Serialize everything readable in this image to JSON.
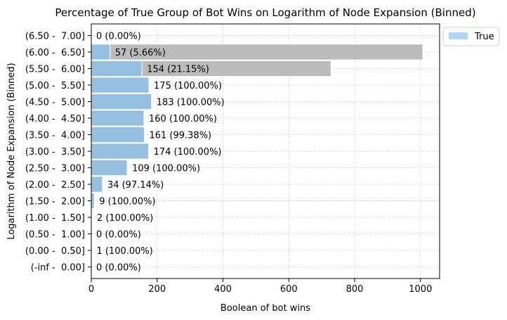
{
  "chart_data": {
    "type": "bar",
    "orientation": "horizontal",
    "title": "Percentage of True Group of Bot Wins on Logarithm of Node Expansion (Binned)",
    "xlabel": "Boolean of bot wins",
    "ylabel": "Logarithm of Node Expansion (Binned)",
    "xlim": [
      0,
      1058
    ],
    "xticks": [
      0,
      200,
      400,
      600,
      800,
      1000
    ],
    "grid": true,
    "legend_position": "top-right",
    "categories": [
      "(-inf -  0.00]",
      "(0.00 -  0.50]",
      "(0.50 -  1.00]",
      "(1.00 -  1.50]",
      "(1.50 -  2.00]",
      "(2.00 -  2.50]",
      "(2.50 -  3.00]",
      "(3.00 -  3.50]",
      "(3.50 -  4.00]",
      "(4.00 -  4.50]",
      "(4.50 -  5.00]",
      "(5.00 -  5.50]",
      "(5.50 -  6.00]",
      "(6.00 -  6.50]",
      "(6.50 -  7.00]"
    ],
    "series": [
      {
        "name": "True",
        "color": "#aed8f5",
        "values": [
          0,
          1,
          0,
          2,
          9,
          34,
          109,
          174,
          161,
          160,
          183,
          175,
          154,
          57,
          0
        ]
      },
      {
        "color": "#bbbbbb",
        "values": [
          0,
          1,
          0,
          2,
          9,
          35,
          109,
          174,
          162,
          160,
          183,
          175,
          728,
          1007,
          0
        ]
      }
    ],
    "bar_labels": [
      "0 (0.00%)",
      "1 (100.00%)",
      "0 (0.00%)",
      "2 (100.00%)",
      "9 (100.00%)",
      "34 (97.14%)",
      "109 (100.00%)",
      "174 (100.00%)",
      "161 (99.38%)",
      "160 (100.00%)",
      "183 (100.00%)",
      "175 (100.00%)",
      "154 (21.15%)",
      "57 (5.66%)",
      "0 (0.00%)"
    ]
  }
}
